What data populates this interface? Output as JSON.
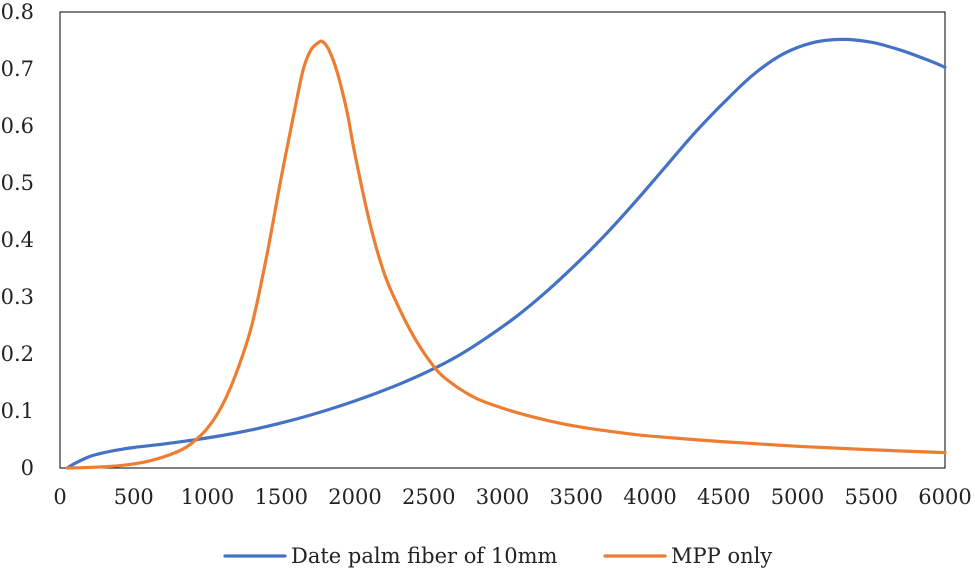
{
  "chart_data": {
    "type": "line",
    "title": "",
    "xlabel": "",
    "ylabel": "",
    "xlim": [
      0,
      6000
    ],
    "ylim": [
      0,
      0.8
    ],
    "grid": false,
    "legend_position": "bottom",
    "x_ticks": [
      0,
      500,
      1000,
      1500,
      2000,
      2500,
      3000,
      3500,
      4000,
      4500,
      5000,
      5500,
      6000
    ],
    "x_tick_labels": [
      "0",
      "500",
      "1000",
      "1500",
      "2000",
      "2500",
      "3000",
      "3500",
      "4000",
      "4500",
      "5000",
      "5500",
      "6000"
    ],
    "y_ticks": [
      0,
      0.1,
      0.2,
      0.3,
      0.4,
      0.5,
      0.6,
      0.7,
      0.8
    ],
    "y_tick_labels": [
      "0",
      "0.1",
      "0.2",
      "0.3",
      "0.4",
      "0.5",
      "0.6",
      "0.7",
      "0.8"
    ],
    "series": [
      {
        "name": "Date palm fiber of 10mm",
        "color": "#4472C4",
        "x": [
          50,
          100,
          200,
          300,
          400,
          500,
          700,
          900,
          1100,
          1300,
          1500,
          1700,
          1900,
          2100,
          2300,
          2500,
          2700,
          2900,
          3100,
          3300,
          3500,
          3700,
          3900,
          4100,
          4300,
          4500,
          4700,
          4900,
          5100,
          5300,
          5500,
          5700,
          5900,
          6000
        ],
        "y": [
          0.0,
          0.008,
          0.02,
          0.027,
          0.032,
          0.036,
          0.042,
          0.049,
          0.057,
          0.067,
          0.079,
          0.093,
          0.109,
          0.127,
          0.147,
          0.17,
          0.197,
          0.23,
          0.267,
          0.31,
          0.358,
          0.41,
          0.467,
          0.527,
          0.587,
          0.641,
          0.69,
          0.726,
          0.746,
          0.752,
          0.747,
          0.733,
          0.714,
          0.703
        ]
      },
      {
        "name": "MPP only",
        "color": "#ED7D31",
        "x": [
          50,
          200,
          400,
          600,
          800,
          900,
          1000,
          1100,
          1200,
          1300,
          1400,
          1500,
          1600,
          1650,
          1700,
          1750,
          1780,
          1820,
          1860,
          1900,
          1950,
          2000,
          2100,
          2200,
          2300,
          2400,
          2500,
          2600,
          2800,
          3000,
          3200,
          3400,
          3600,
          3800,
          4000,
          4500,
          5000,
          5500,
          6000
        ],
        "y": [
          0.0,
          0.001,
          0.004,
          0.012,
          0.029,
          0.045,
          0.07,
          0.11,
          0.17,
          0.25,
          0.37,
          0.51,
          0.64,
          0.7,
          0.733,
          0.746,
          0.748,
          0.735,
          0.71,
          0.675,
          0.62,
          0.55,
          0.43,
          0.34,
          0.28,
          0.23,
          0.19,
          0.16,
          0.125,
          0.105,
          0.09,
          0.078,
          0.069,
          0.062,
          0.056,
          0.046,
          0.038,
          0.032,
          0.027
        ]
      }
    ]
  }
}
